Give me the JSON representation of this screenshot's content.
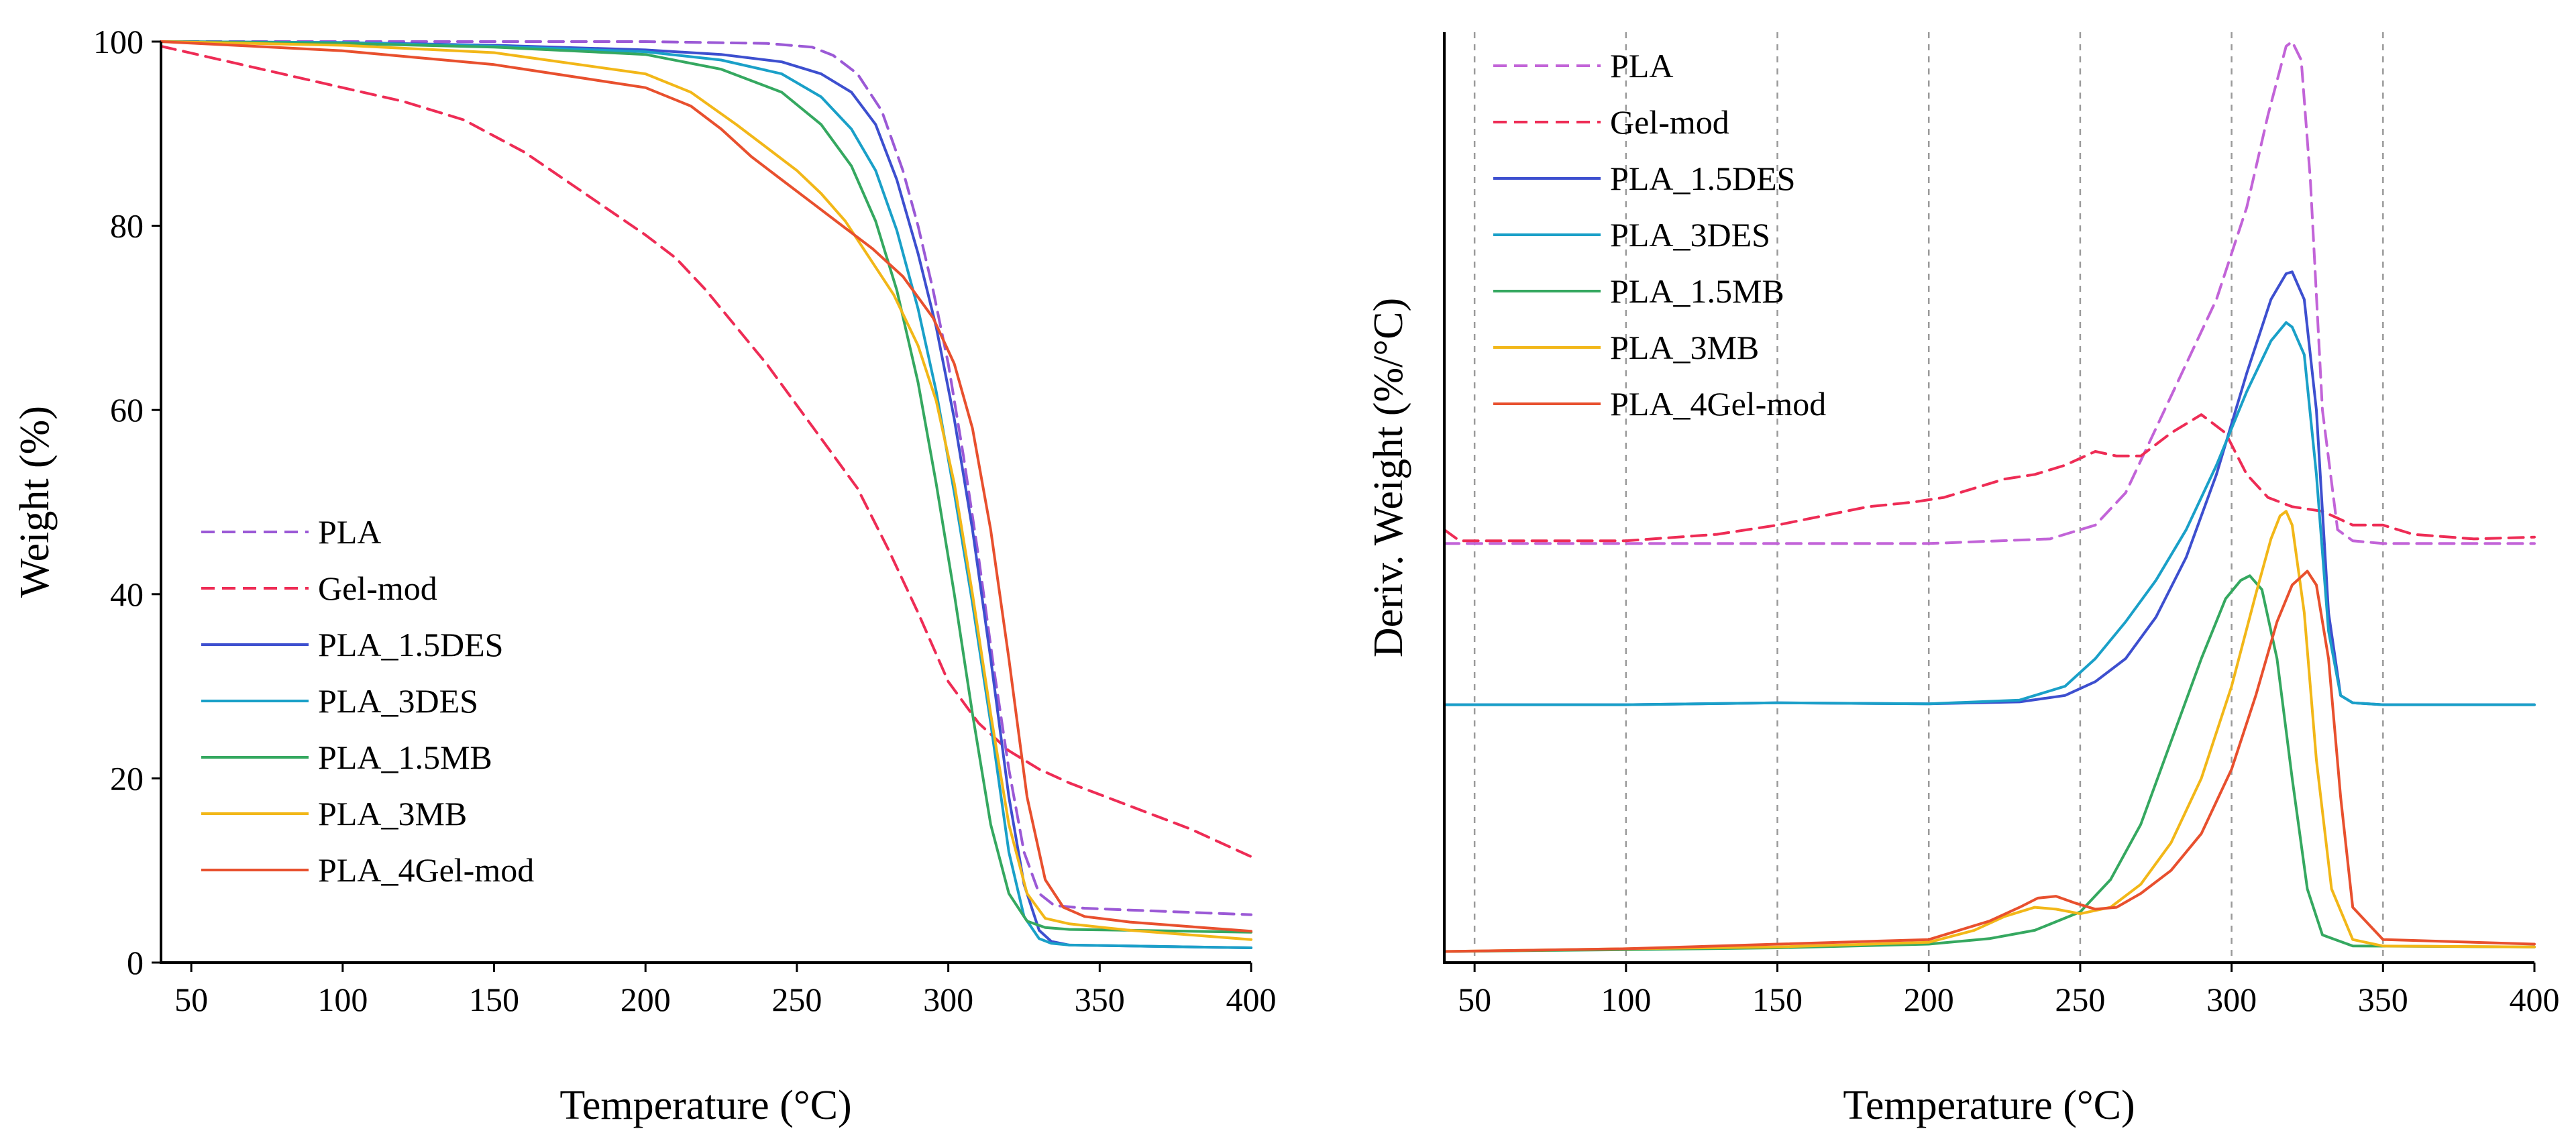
{
  "chart_data": [
    {
      "id": "tga",
      "type": "line",
      "title": "",
      "xlabel": "Temperature (°C)",
      "ylabel": "Weight (%)",
      "xlim": [
        40,
        400
      ],
      "ylim": [
        0,
        100
      ],
      "xticks": [
        50,
        100,
        150,
        200,
        250,
        300,
        350,
        400
      ],
      "yticks": [
        0,
        20,
        40,
        60,
        80,
        100
      ],
      "grid": false,
      "legend_position": "center-left",
      "series": [
        {
          "name": "PLA",
          "color": "#9b59d6",
          "dash": "dashed",
          "x": [
            40,
            100,
            200,
            240,
            255,
            262,
            270,
            278,
            285,
            290,
            295,
            300,
            305,
            310,
            315,
            320,
            325,
            330,
            335,
            345,
            360,
            400
          ],
          "y": [
            100,
            100,
            100,
            99.8,
            99.4,
            98.5,
            96.5,
            92.5,
            86,
            80,
            73,
            65,
            55,
            44,
            32,
            21,
            12,
            7.5,
            6.2,
            5.9,
            5.7,
            5.2
          ]
        },
        {
          "name": "Gel-mod",
          "color": "#ee2c55",
          "dash": "dashed",
          "x": [
            40,
            60,
            80,
            100,
            120,
            140,
            160,
            180,
            200,
            210,
            220,
            230,
            240,
            250,
            260,
            270,
            280,
            290,
            300,
            310,
            320,
            330,
            340,
            360,
            380,
            400
          ],
          "y": [
            99.5,
            98,
            96.5,
            95,
            93.5,
            91.5,
            88,
            83.5,
            79,
            76.5,
            73,
            69,
            65,
            60.5,
            56,
            51.5,
            45,
            38,
            30.5,
            26,
            23,
            21,
            19.5,
            17,
            14.5,
            11.5
          ]
        },
        {
          "name": "PLA_1.5DES",
          "color": "#3d4fcf",
          "dash": "solid",
          "x": [
            40,
            100,
            150,
            200,
            225,
            245,
            258,
            268,
            276,
            283,
            290,
            296,
            302,
            308,
            314,
            320,
            325,
            330,
            334,
            340,
            360,
            400
          ],
          "y": [
            100,
            99.9,
            99.6,
            99.1,
            98.6,
            97.8,
            96.5,
            94.5,
            91,
            85,
            77,
            69,
            59,
            47,
            33,
            18,
            8.5,
            3.5,
            2.3,
            1.9,
            1.8,
            1.6
          ]
        },
        {
          "name": "PLA_3DES",
          "color": "#1aa0c8",
          "dash": "solid",
          "x": [
            40,
            100,
            150,
            200,
            225,
            245,
            258,
            268,
            276,
            283,
            290,
            296,
            302,
            308,
            314,
            320,
            325,
            330,
            334,
            340,
            360,
            400
          ],
          "y": [
            100,
            99.9,
            99.5,
            98.9,
            98,
            96.5,
            94,
            90.5,
            86,
            79.5,
            71,
            62,
            51,
            39,
            26,
            12,
            5,
            2.6,
            2.1,
            1.9,
            1.8,
            1.6
          ]
        },
        {
          "name": "PLA_1.5MB",
          "color": "#35a860",
          "dash": "solid",
          "x": [
            40,
            100,
            150,
            200,
            225,
            245,
            258,
            268,
            276,
            283,
            290,
            296,
            302,
            308,
            314,
            320,
            326,
            332,
            340,
            360,
            400
          ],
          "y": [
            100,
            99.8,
            99.4,
            98.6,
            97,
            94.5,
            91,
            86.5,
            80.5,
            73,
            63,
            52,
            40,
            27,
            15,
            7.5,
            4.5,
            3.8,
            3.6,
            3.5,
            3.3
          ]
        },
        {
          "name": "PLA_3MB",
          "color": "#f2b718",
          "dash": "solid",
          "x": [
            40,
            100,
            150,
            200,
            215,
            230,
            240,
            250,
            258,
            266,
            274,
            282,
            290,
            296,
            302,
            308,
            314,
            320,
            326,
            332,
            340,
            360,
            400
          ],
          "y": [
            100,
            99.6,
            98.8,
            96.5,
            94.5,
            91,
            88.5,
            86,
            83.5,
            80.5,
            76.5,
            72.5,
            67,
            61,
            52,
            40,
            27,
            15,
            7.5,
            4.8,
            4.2,
            3.5,
            2.5
          ]
        },
        {
          "name": "PLA_4Gel-mod",
          "color": "#e8502e",
          "dash": "solid",
          "x": [
            40,
            100,
            150,
            200,
            215,
            225,
            235,
            245,
            255,
            265,
            275,
            285,
            295,
            302,
            308,
            314,
            320,
            326,
            332,
            338,
            345,
            360,
            400
          ],
          "y": [
            100,
            99,
            97.5,
            95,
            93,
            90.5,
            87.5,
            85,
            82.5,
            80,
            77.5,
            74.5,
            70,
            65,
            58,
            47,
            33,
            18,
            9,
            6,
            5,
            4.4,
            3.4
          ]
        }
      ]
    },
    {
      "id": "dtg",
      "type": "line",
      "title": "",
      "xlabel": "Temperature (°C)",
      "ylabel": "Deriv. Weight (%/°C)",
      "xlim": [
        40,
        400
      ],
      "ylim": [
        0,
        100
      ],
      "y_units": "arbitrary (stacked curves, no y tick labels)",
      "xticks": [
        50,
        100,
        150,
        200,
        250,
        300,
        350,
        400
      ],
      "vertical_grid_at": [
        50,
        100,
        150,
        200,
        250,
        300,
        350
      ],
      "grid": "vertical dashed",
      "legend_position": "top-left",
      "series": [
        {
          "name": "PLA",
          "color": "#c264d8",
          "dash": "dashed",
          "x": [
            40,
            100,
            150,
            200,
            240,
            255,
            265,
            275,
            285,
            295,
            305,
            312,
            318,
            320,
            323,
            326,
            330,
            335,
            340,
            350,
            400
          ],
          "y": [
            45.5,
            45.5,
            45.5,
            45.5,
            46,
            47.5,
            51,
            58,
            65,
            72,
            82,
            92,
            99.5,
            100,
            98,
            85,
            60,
            47,
            45.8,
            45.5,
            45.5
          ]
        },
        {
          "name": "Gel-mod",
          "color": "#ee2c55",
          "dash": "dashed",
          "x": [
            40,
            45,
            60,
            100,
            130,
            150,
            165,
            180,
            195,
            205,
            215,
            225,
            235,
            245,
            255,
            262,
            270,
            280,
            290,
            298,
            305,
            312,
            320,
            330,
            340,
            350,
            360,
            380,
            400
          ],
          "y": [
            47,
            45.8,
            45.8,
            45.8,
            46.5,
            47.5,
            48.5,
            49.5,
            50,
            50.5,
            51.5,
            52.5,
            53,
            54,
            55.5,
            55,
            55,
            57.5,
            59.5,
            57.5,
            53,
            50.5,
            49.5,
            49,
            47.5,
            47.5,
            46.5,
            46,
            46.2
          ]
        },
        {
          "name": "PLA_1.5DES",
          "color": "#3d4fcf",
          "dash": "solid",
          "x": [
            40,
            100,
            150,
            200,
            230,
            245,
            255,
            265,
            275,
            285,
            295,
            305,
            313,
            318,
            320,
            324,
            328,
            332,
            336,
            340,
            350,
            400
          ],
          "y": [
            28,
            28,
            28.2,
            28.1,
            28.3,
            29,
            30.5,
            33,
            37.5,
            44,
            53,
            64,
            72,
            74.8,
            75,
            72,
            60,
            38,
            29,
            28.2,
            28,
            28
          ]
        },
        {
          "name": "PLA_3DES",
          "color": "#1aa0c8",
          "dash": "solid",
          "x": [
            40,
            100,
            150,
            200,
            230,
            245,
            255,
            265,
            275,
            285,
            295,
            305,
            313,
            318,
            320,
            324,
            328,
            332,
            336,
            340,
            350,
            400
          ],
          "y": [
            28,
            28,
            28.2,
            28.1,
            28.5,
            30,
            33,
            37,
            41.5,
            47,
            54,
            62,
            67.5,
            69.5,
            69,
            66,
            53,
            36,
            29,
            28.2,
            28,
            28
          ]
        },
        {
          "name": "PLA_1.5MB",
          "color": "#35a860",
          "dash": "solid",
          "x": [
            40,
            100,
            150,
            200,
            220,
            235,
            250,
            260,
            270,
            280,
            290,
            298,
            303,
            306,
            310,
            315,
            320,
            325,
            330,
            340,
            400
          ],
          "y": [
            1.2,
            1.4,
            1.6,
            2,
            2.6,
            3.5,
            5.5,
            9,
            15,
            24,
            33,
            39.5,
            41.5,
            42,
            40.5,
            33,
            20,
            8,
            3,
            1.8,
            1.7
          ]
        },
        {
          "name": "PLA_3MB",
          "color": "#f2b718",
          "dash": "solid",
          "x": [
            40,
            100,
            150,
            200,
            215,
            225,
            235,
            242,
            250,
            260,
            270,
            280,
            290,
            300,
            308,
            313,
            316,
            318,
            320,
            324,
            328,
            333,
            340,
            350,
            400
          ],
          "y": [
            1.2,
            1.5,
            1.7,
            2.2,
            3.5,
            5,
            6,
            5.8,
            5.3,
            6,
            8.5,
            13,
            20,
            30,
            40,
            46,
            48.5,
            49,
            47.5,
            38,
            22,
            8,
            2.5,
            1.8,
            1.7
          ]
        },
        {
          "name": "PLA_4Gel-mod",
          "color": "#e8502e",
          "dash": "solid",
          "x": [
            40,
            100,
            150,
            200,
            210,
            220,
            230,
            236,
            242,
            248,
            255,
            262,
            270,
            280,
            290,
            300,
            308,
            315,
            320,
            325,
            328,
            332,
            336,
            340,
            350,
            400
          ],
          "y": [
            1.2,
            1.5,
            2,
            2.5,
            3.5,
            4.5,
            6,
            7,
            7.2,
            6.5,
            5.8,
            6,
            7.5,
            10,
            14,
            21,
            29,
            37,
            41,
            42.5,
            41,
            33,
            18,
            6,
            2.5,
            2
          ]
        }
      ]
    }
  ]
}
